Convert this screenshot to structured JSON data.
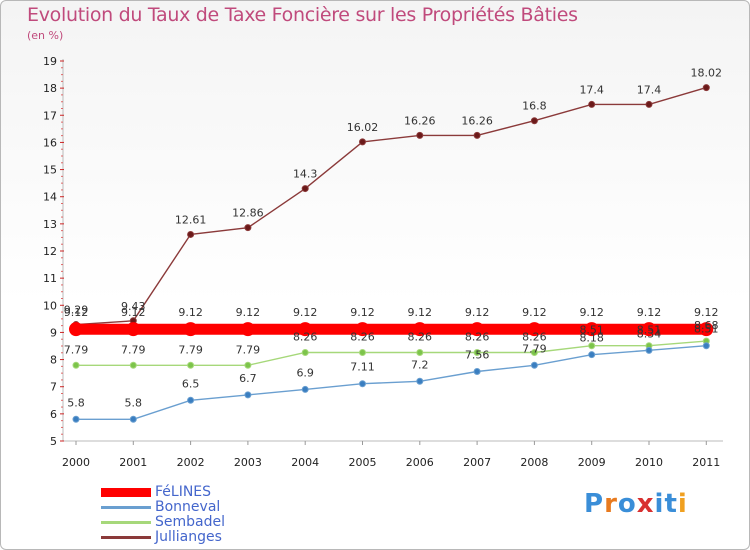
{
  "title": "Evolution du Taux de Taxe Foncière sur les Propriétés Bâties",
  "subtitle": "(en %)",
  "logo": {
    "letters": [
      "P",
      "r",
      "o",
      "x",
      "i",
      "t",
      "i"
    ],
    "colors": [
      "#3a8ed8",
      "#e87a1e",
      "#3a8ed8",
      "#d83030",
      "#3a8ed8",
      "#3a8ed8",
      "#f0a020"
    ]
  },
  "chart_data": {
    "type": "line",
    "title": "Evolution du Taux de Taxe Foncière sur les Propriétés Bâties",
    "ylabel": "(en %)",
    "xlabel": "",
    "ylim": [
      5,
      19
    ],
    "yticks": [
      "5",
      "6",
      "7",
      "8",
      "9",
      "10",
      "11",
      "12",
      "13",
      "14",
      "15",
      "16",
      "17",
      "18",
      "19"
    ],
    "categories": [
      "2000",
      "2001",
      "2002",
      "2003",
      "2004",
      "2005",
      "2006",
      "2007",
      "2008",
      "2009",
      "2010",
      "2011"
    ],
    "series": [
      {
        "name": "FéLINES",
        "color": "#ff0000",
        "emphasis": true,
        "values": [
          9.12,
          9.12,
          9.12,
          9.12,
          9.12,
          9.12,
          9.12,
          9.12,
          9.12,
          9.12,
          9.12,
          9.12
        ],
        "labels": [
          "9.12",
          "9.12",
          "9.12",
          "9.12",
          "9.12",
          "9.12",
          "9.12",
          "9.12",
          "9.12",
          "9.12",
          "9.12",
          "9.12"
        ]
      },
      {
        "name": "Bonneval",
        "color": "#6a9fd0",
        "marker": "#3a7ec0",
        "values": [
          5.8,
          5.8,
          6.5,
          6.7,
          6.9,
          7.11,
          7.2,
          7.56,
          7.79,
          8.18,
          8.34,
          8.51
        ],
        "labels": [
          "5.8",
          "5.8",
          "6.5",
          "6.7",
          "6.9",
          "7.11",
          "7.2",
          "7.56",
          "7.79",
          "8.18",
          "8.34",
          "8.51"
        ]
      },
      {
        "name": "Sembadel",
        "color": "#a6d87a",
        "marker": "#7cc44a",
        "values": [
          7.79,
          7.79,
          7.79,
          7.79,
          8.26,
          8.26,
          8.26,
          8.26,
          8.26,
          8.51,
          8.51,
          8.68
        ],
        "labels": [
          "7.79",
          "7.79",
          "7.79",
          "7.79",
          "8.26",
          "8.26",
          "8.26",
          "8.26",
          "8.26",
          "8.51",
          "8.51",
          "8.68"
        ]
      },
      {
        "name": "Jullianges",
        "color": "#8b3a3a",
        "marker": "#6b1a1a",
        "values": [
          9.29,
          9.43,
          12.61,
          12.86,
          14.3,
          16.02,
          16.26,
          16.26,
          16.8,
          17.4,
          17.4,
          18.02
        ],
        "labels": [
          "9.29",
          "9.43",
          "12.61",
          "12.86",
          "14.3",
          "16.02",
          "16.26",
          "16.26",
          "16.8",
          "17.4",
          "17.4",
          "18.02"
        ]
      }
    ],
    "legend_position": "bottom-left",
    "grid": false
  }
}
